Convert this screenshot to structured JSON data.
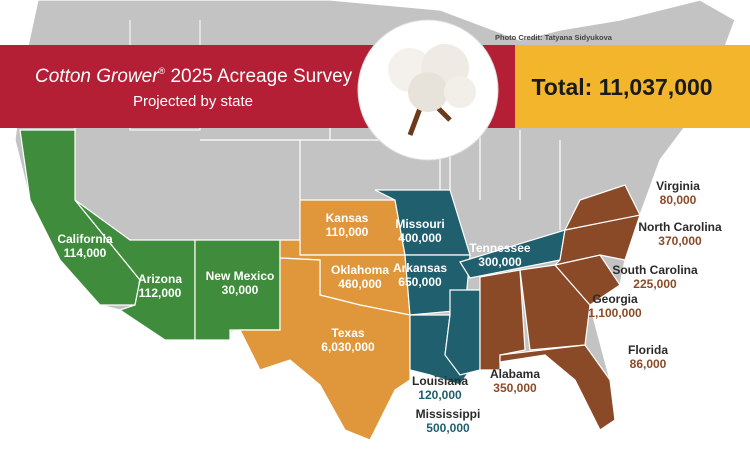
{
  "header": {
    "brand": "Cotton Grower",
    "mark": "®",
    "title": " 2025 Acreage Survey",
    "subtitle": "Projected by state",
    "total": "Total: 11,037,000",
    "credit": "Photo Credit: Tatyana Sidyukova"
  },
  "states": [
    {
      "name": "California",
      "value": "114,000"
    },
    {
      "name": "Arizona",
      "value": "112,000"
    },
    {
      "name": "New Mexico",
      "value": "30,000"
    },
    {
      "name": "Kansas",
      "value": "110,000"
    },
    {
      "name": "Oklahoma",
      "value": "460,000"
    },
    {
      "name": "Texas",
      "value": "6,030,000"
    },
    {
      "name": "Missouri",
      "value": "400,000"
    },
    {
      "name": "Arkansas",
      "value": "650,000"
    },
    {
      "name": "Tennessee",
      "value": "300,000"
    },
    {
      "name": "Louisiana",
      "value": "120,000"
    },
    {
      "name": "Mississippi",
      "value": "500,000"
    },
    {
      "name": "Alabama",
      "value": "350,000"
    },
    {
      "name": "Georgia",
      "value": "1,100,000"
    },
    {
      "name": "Florida",
      "value": "86,000"
    },
    {
      "name": "South Carolina",
      "value": "225,000"
    },
    {
      "name": "North Carolina",
      "value": "370,000"
    },
    {
      "name": "Virginia",
      "value": "80,000"
    }
  ]
}
